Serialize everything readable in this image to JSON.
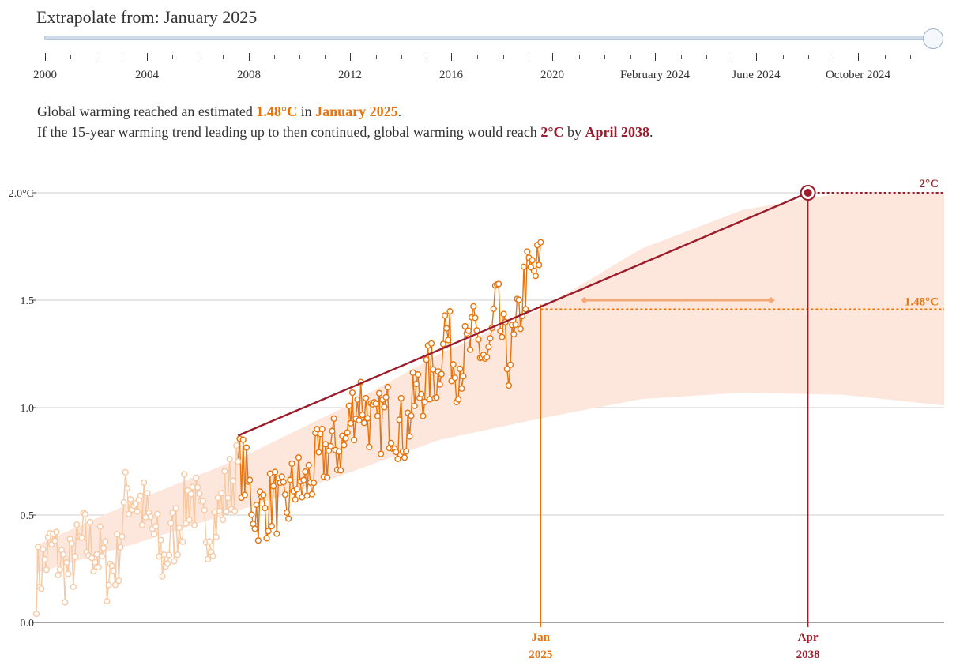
{
  "slider": {
    "title": "Extrapolate from: January 2025",
    "ticks": [
      {
        "label": "2000",
        "x": 57
      },
      {
        "label": "2004",
        "x": 186
      },
      {
        "label": "2008",
        "x": 315
      },
      {
        "label": "2012",
        "x": 443
      },
      {
        "label": "2016",
        "x": 571
      },
      {
        "label": "2020",
        "x": 699
      },
      {
        "label": "February 2024",
        "x": 829
      },
      {
        "label": "June 2024",
        "x": 957
      },
      {
        "label": "October 2024",
        "x": 1086
      }
    ]
  },
  "summary": {
    "line1_pre": "Global warming reached an estimated ",
    "line1_value": "1.48°C",
    "line1_mid": " in ",
    "line1_date": "January 2025",
    "line1_post": ".",
    "line2_pre": "If the 15-year warming trend leading up to then continued, global warming would reach ",
    "line2_value": "2°C",
    "line2_mid": " by ",
    "line2_date": "April 2038",
    "line2_post": "."
  },
  "colors": {
    "orange": "#e8730c",
    "light_orange": "#f7c9a3",
    "band": "#fde7dc",
    "dark_red": "#9b1d2c",
    "grid": "#cccccc"
  },
  "chart_data": {
    "type": "line",
    "x_axis": {
      "range": [
        "2000-01",
        "2045-01"
      ]
    },
    "y_axis": {
      "range": [
        0,
        2.0
      ],
      "ticks": [
        "0.0",
        "0.5",
        "1.0",
        "1.5",
        "2.0°C"
      ]
    },
    "grid": "horizontal",
    "extrapolation_start": {
      "date": "2025-01",
      "value": 1.48,
      "label_month": "Jan",
      "label_year": "2025"
    },
    "target": {
      "date": "2038-04",
      "value": 2.0,
      "label_month": "Apr",
      "label_year": "2038"
    },
    "labels": {
      "target_value": "2°C",
      "current_value": "1.48°C"
    },
    "trend_line": {
      "start": {
        "date": "2010-01",
        "value": 0.87
      },
      "end": {
        "date": "2038-04",
        "value": 2.0
      }
    },
    "current_range_arrow": {
      "from_date": "2027-03",
      "to_date": "2036-06",
      "value": 1.5
    },
    "band": {
      "x": [
        2000,
        2005,
        2010,
        2015,
        2020,
        2025,
        2030,
        2035,
        2040,
        2045
      ],
      "upper": [
        0.36,
        0.57,
        0.76,
        0.99,
        1.25,
        1.46,
        1.74,
        1.92,
        2.0,
        2.0
      ],
      "lower": [
        0.23,
        0.37,
        0.52,
        0.68,
        0.85,
        0.95,
        1.04,
        1.07,
        1.06,
        1.01
      ]
    },
    "series": {
      "anchors": [
        [
          2000.0,
          0.2
        ],
        [
          2000.8,
          0.36
        ],
        [
          2001.5,
          0.22
        ],
        [
          2002.3,
          0.38
        ],
        [
          2003.0,
          0.34
        ],
        [
          2003.5,
          0.24
        ],
        [
          2004.0,
          0.28
        ],
        [
          2004.5,
          0.62
        ],
        [
          2005.2,
          0.55
        ],
        [
          2005.8,
          0.42
        ],
        [
          2006.3,
          0.28
        ],
        [
          2007.0,
          0.45
        ],
        [
          2007.7,
          0.62
        ],
        [
          2008.2,
          0.43
        ],
        [
          2008.9,
          0.48
        ],
        [
          2009.5,
          0.62
        ],
        [
          2010.2,
          0.74
        ],
        [
          2010.8,
          0.53
        ],
        [
          2011.2,
          0.52
        ],
        [
          2011.8,
          0.58
        ],
        [
          2012.3,
          0.5
        ],
        [
          2012.8,
          0.66
        ],
        [
          2013.3,
          0.62
        ],
        [
          2013.9,
          0.74
        ],
        [
          2014.5,
          0.8
        ],
        [
          2015.3,
          0.82
        ],
        [
          2015.6,
          0.98
        ],
        [
          2016.1,
          1.05
        ],
        [
          2016.8,
          0.88
        ],
        [
          2017.3,
          0.98
        ],
        [
          2017.9,
          0.92
        ],
        [
          2018.3,
          0.88
        ],
        [
          2018.8,
          1.05
        ],
        [
          2019.3,
          1.12
        ],
        [
          2019.7,
          1.18
        ],
        [
          2019.9,
          1.12
        ],
        [
          2020.2,
          1.4
        ],
        [
          2020.8,
          1.18
        ],
        [
          2021.3,
          1.25
        ],
        [
          2021.7,
          1.33
        ],
        [
          2022.0,
          1.28
        ],
        [
          2022.4,
          1.2
        ],
        [
          2022.8,
          1.48
        ],
        [
          2023.3,
          1.22
        ],
        [
          2023.7,
          1.28
        ],
        [
          2024.2,
          1.58
        ],
        [
          2024.6,
          1.62
        ],
        [
          2025.0,
          1.65
        ]
      ]
    }
  }
}
